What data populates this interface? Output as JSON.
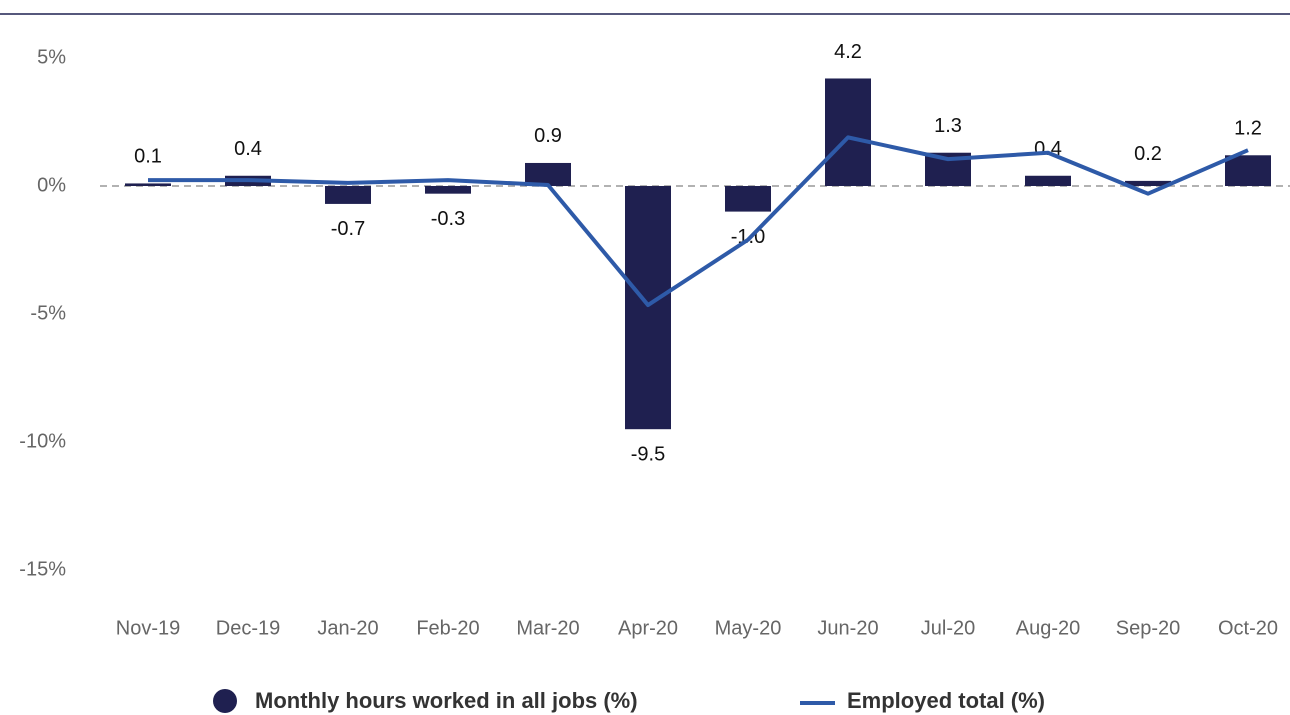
{
  "chart_data": {
    "type": "bar_line",
    "categories": [
      "Nov-19",
      "Dec-19",
      "Jan-20",
      "Feb-20",
      "Mar-20",
      "Apr-20",
      "May-20",
      "Jun-20",
      "Jul-20",
      "Aug-20",
      "Sep-20",
      "Oct-20"
    ],
    "series": [
      {
        "name": "Monthly hours worked in all jobs (%)",
        "color": "#1f2050",
        "kind": "bar",
        "values": [
          0.1,
          0.4,
          -0.7,
          -0.3,
          0.9,
          -9.5,
          -1.0,
          4.2,
          1.3,
          0.4,
          0.2,
          1.2
        ],
        "value_labels": [
          "0.1",
          "0.4",
          "-0.7",
          "-0.3",
          "0.9",
          "-9.5",
          "-1.0",
          "4.2",
          "1.3",
          "0.4",
          "0.2",
          "1.2"
        ]
      },
      {
        "name": "Employed total (%)",
        "color": "#2e5aa8",
        "kind": "line",
        "values": [
          0.23,
          0.23,
          0.12,
          0.23,
          0.04,
          -4.65,
          -2.1,
          1.9,
          1.05,
          1.3,
          -0.3,
          1.4
        ]
      }
    ],
    "ylim": [
      -15,
      5
    ],
    "yticks": [
      {
        "value": 5,
        "label": "5%"
      },
      {
        "value": 0,
        "label": "0%"
      },
      {
        "value": -5,
        "label": "-5%"
      },
      {
        "value": -10,
        "label": "-10%"
      },
      {
        "value": -15,
        "label": "-15%"
      }
    ],
    "grid": false,
    "legend": "bottom"
  }
}
